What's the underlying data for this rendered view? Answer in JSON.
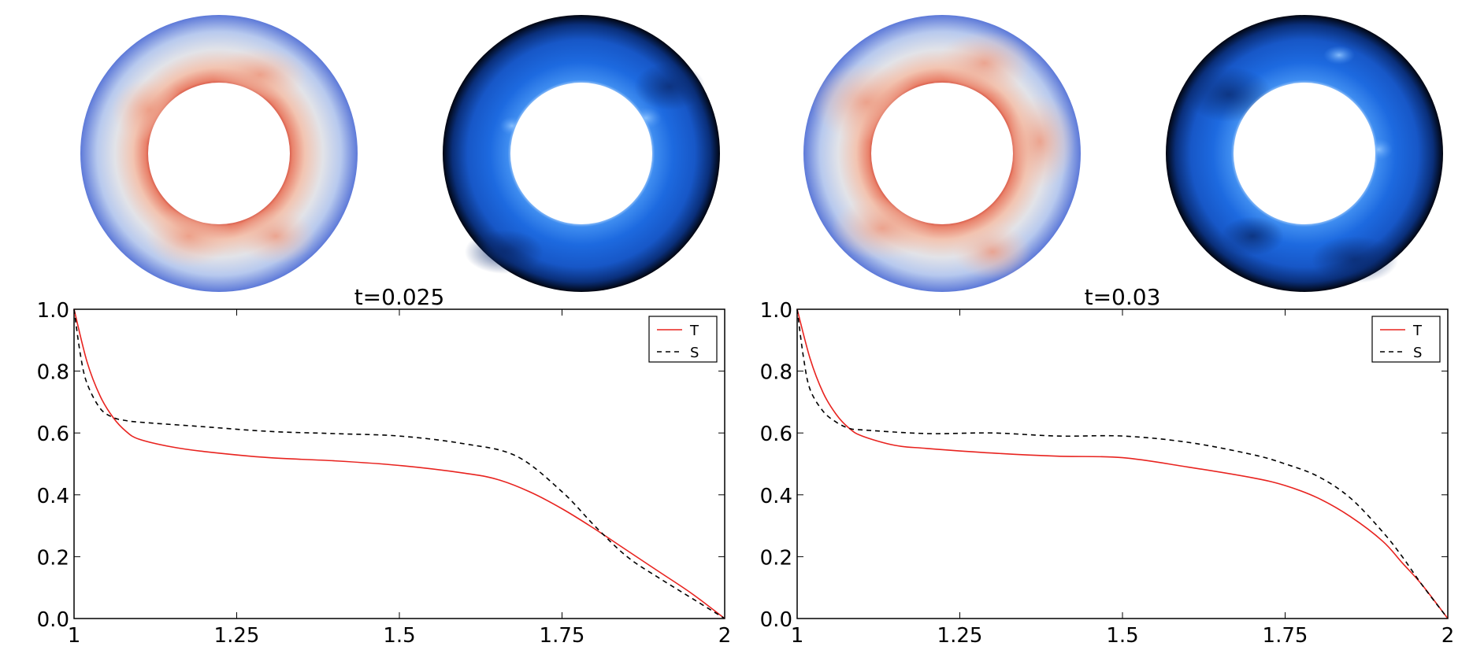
{
  "figure": {
    "panels": [
      {
        "field_images": [
          {
            "description_icon": "temperature-field-annulus",
            "colormap": "coolwarm"
          },
          {
            "description_icon": "composition-field-annulus",
            "colormap": "blues-dark"
          }
        ]
      },
      {
        "field_images": [
          {
            "description_icon": "temperature-field-annulus",
            "colormap": "coolwarm"
          },
          {
            "description_icon": "composition-field-annulus",
            "colormap": "blues-dark"
          }
        ]
      }
    ]
  },
  "chart_data": [
    {
      "type": "line",
      "title": "t=0.025",
      "xlabel": "",
      "ylabel": "",
      "xlim": [
        1,
        2
      ],
      "ylim": [
        0,
        1
      ],
      "x_ticks": [
        1,
        1.25,
        1.5,
        1.75,
        2
      ],
      "x_tick_labels": [
        "1",
        "1.25",
        "1.5",
        "1.75",
        "2"
      ],
      "y_ticks": [
        0,
        0.2,
        0.4,
        0.6,
        0.8,
        1.0
      ],
      "y_tick_labels": [
        "0.0",
        "0.2",
        "0.4",
        "0.6",
        "0.8",
        "1.0"
      ],
      "legend_position": "top-right",
      "series": [
        {
          "name": "T",
          "color": "#e8231f",
          "style": "solid",
          "x": [
            1.0,
            1.02,
            1.04,
            1.06,
            1.08,
            1.1,
            1.15,
            1.2,
            1.3,
            1.4,
            1.5,
            1.6,
            1.65,
            1.7,
            1.75,
            1.8,
            1.85,
            1.9,
            1.95,
            2.0
          ],
          "y": [
            1.0,
            0.83,
            0.72,
            0.65,
            0.605,
            0.58,
            0.555,
            0.54,
            0.52,
            0.51,
            0.495,
            0.47,
            0.45,
            0.41,
            0.355,
            0.29,
            0.22,
            0.15,
            0.08,
            0.0
          ]
        },
        {
          "name": "S",
          "color": "#000000",
          "style": "dashed",
          "x": [
            1.0,
            1.01,
            1.02,
            1.04,
            1.06,
            1.08,
            1.1,
            1.2,
            1.3,
            1.4,
            1.5,
            1.6,
            1.68,
            1.75,
            1.8,
            1.85,
            1.9,
            1.95,
            2.0
          ],
          "y": [
            1.0,
            0.85,
            0.76,
            0.68,
            0.65,
            0.64,
            0.635,
            0.62,
            0.605,
            0.598,
            0.59,
            0.565,
            0.525,
            0.41,
            0.3,
            0.2,
            0.13,
            0.065,
            0.0
          ]
        }
      ]
    },
    {
      "type": "line",
      "title": "t=0.03",
      "xlabel": "",
      "ylabel": "",
      "xlim": [
        1,
        2
      ],
      "ylim": [
        0,
        1
      ],
      "x_ticks": [
        1,
        1.25,
        1.5,
        1.75,
        2
      ],
      "x_tick_labels": [
        "1",
        "1.25",
        "1.5",
        "1.75",
        "2"
      ],
      "y_ticks": [
        0,
        0.2,
        0.4,
        0.6,
        0.8,
        1.0
      ],
      "y_tick_labels": [
        "0.0",
        "0.2",
        "0.4",
        "0.6",
        "0.8",
        "1.0"
      ],
      "legend_position": "top-right",
      "series": [
        {
          "name": "T",
          "color": "#e8231f",
          "style": "solid",
          "x": [
            1.0,
            1.02,
            1.04,
            1.06,
            1.08,
            1.1,
            1.15,
            1.2,
            1.3,
            1.4,
            1.5,
            1.6,
            1.7,
            1.75,
            1.8,
            1.85,
            1.9,
            1.93,
            1.96,
            2.0
          ],
          "y": [
            1.0,
            0.84,
            0.73,
            0.66,
            0.615,
            0.59,
            0.56,
            0.55,
            0.535,
            0.525,
            0.52,
            0.49,
            0.455,
            0.43,
            0.39,
            0.33,
            0.25,
            0.18,
            0.11,
            0.0
          ]
        },
        {
          "name": "S",
          "color": "#000000",
          "style": "dashed",
          "x": [
            1.0,
            1.01,
            1.02,
            1.04,
            1.06,
            1.08,
            1.1,
            1.2,
            1.3,
            1.4,
            1.5,
            1.6,
            1.7,
            1.75,
            1.8,
            1.85,
            1.9,
            1.93,
            1.96,
            2.0
          ],
          "y": [
            1.0,
            0.84,
            0.74,
            0.67,
            0.635,
            0.615,
            0.61,
            0.598,
            0.6,
            0.59,
            0.59,
            0.57,
            0.53,
            0.5,
            0.46,
            0.39,
            0.28,
            0.2,
            0.11,
            0.0
          ]
        }
      ]
    }
  ]
}
